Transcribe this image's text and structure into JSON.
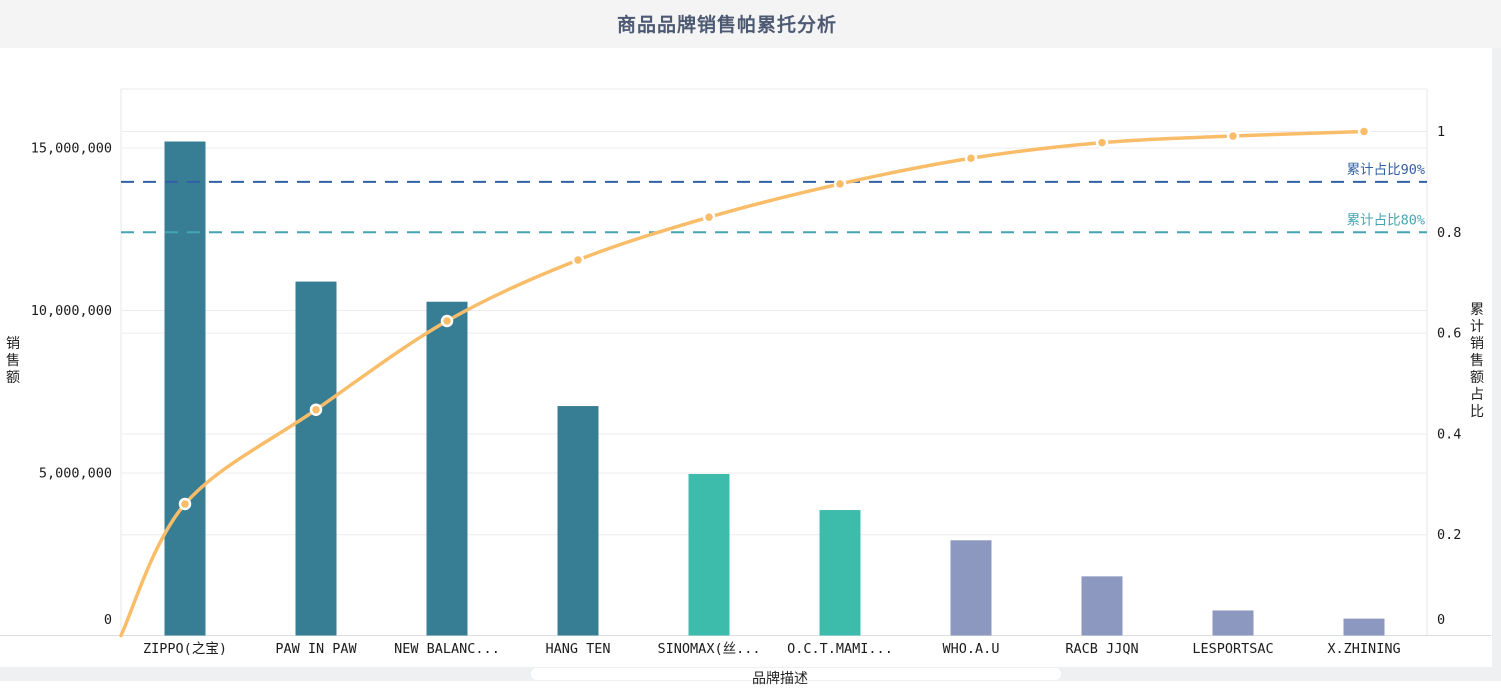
{
  "header": {
    "title": "商品品牌销售帕累托分析"
  },
  "chart_data": {
    "type": "pareto (bar + line combo)",
    "categories": [
      "ZIPPO(之宝)",
      "PAW IN PAW",
      "NEW BALANC...",
      "HANG TEN",
      "SINOMAX(丝...",
      "O.C.T.MAMI...",
      "WHO.A.U",
      "RACB JJQN",
      "LESPORTSAC",
      "X.ZHINING"
    ],
    "series": [
      {
        "name": "销售额",
        "type": "bar",
        "yaxis": "left",
        "values": [
          15200000,
          10890000,
          10270000,
          7060000,
          4970000,
          3860000,
          2930000,
          1820000,
          770000,
          520000
        ],
        "colors": [
          "#377e95",
          "#377e95",
          "#377e95",
          "#377e95",
          "#3dbcac",
          "#3dbcac",
          "#8c98c0",
          "#8c98c0",
          "#8c98c0",
          "#8c98c0"
        ]
      },
      {
        "name": "累计销售额占比",
        "type": "line",
        "yaxis": "right",
        "color": "#f9bd69",
        "marker": "circle-white-ring",
        "starts_at_origin": true,
        "values": [
          0.261,
          0.448,
          0.624,
          0.745,
          0.83,
          0.896,
          0.947,
          0.978,
          0.991,
          1.0
        ]
      }
    ],
    "left_axis": {
      "name": "销售额",
      "max": 15000000,
      "ticks": [
        {
          "label": "0",
          "value": 0
        },
        {
          "label": "5,000,000",
          "value": 5000000
        },
        {
          "label": "10,000,000",
          "value": 10000000
        },
        {
          "label": "15,000,000",
          "value": 15000000
        }
      ]
    },
    "right_axis": {
      "name": "累计销售额占比",
      "max": 1,
      "ticks": [
        {
          "label": "0",
          "value": 0
        },
        {
          "label": "0.2",
          "value": 0.2
        },
        {
          "label": "0.4",
          "value": 0.4
        },
        {
          "label": "0.6",
          "value": 0.6
        },
        {
          "label": "0.8",
          "value": 0.8
        },
        {
          "label": "1",
          "value": 1
        }
      ]
    },
    "x_axis": {
      "name": "品牌描述"
    },
    "marklines": [
      {
        "label": "累计占比90%",
        "value": 0.9,
        "color": "#3360a5"
      },
      {
        "label": "累计占比80%",
        "value": 0.8,
        "color": "#47a4b3"
      }
    ],
    "grid": {
      "show": true,
      "gridline_color": "#ececee"
    }
  }
}
